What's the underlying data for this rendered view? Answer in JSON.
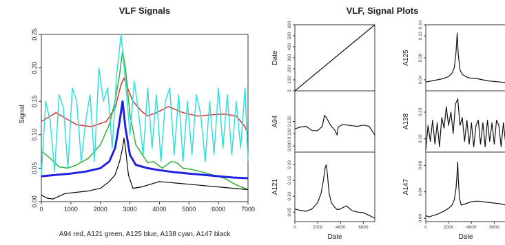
{
  "left_panel": {
    "title": "VLF Signals",
    "ylabel": "Signal",
    "xlabel": "A94 red, A121 green, A125 blue, A138 cyan, A147 black"
  },
  "right_panel": {
    "title": "VLF, Signal Plots",
    "xlabel": "Date"
  },
  "colors": {
    "A94": "#e03030",
    "A121": "#30b030",
    "A125": "#2020e0",
    "A138": "#30e0e0",
    "A147": "#000000"
  },
  "chart_data": [
    {
      "type": "line",
      "title": "VLF Signals",
      "xlabel": "A94 red, A121 green, A125 blue, A138 cyan, A147 black",
      "ylabel": "Signal",
      "xlim": [
        0,
        7000
      ],
      "ylim": [
        0,
        0.25
      ],
      "xticks": [
        0,
        1000,
        2000,
        3000,
        4000,
        5000,
        6000,
        7000
      ],
      "yticks": [
        0.0,
        0.05,
        0.1,
        0.15,
        0.2,
        0.25
      ],
      "ytick_labels": [
        "0.00",
        "0.05",
        "0.10",
        "0.15",
        "0.20",
        "0.25"
      ],
      "series": [
        {
          "name": "A94",
          "color": "#e03030",
          "x": [
            0,
            200,
            500,
            800,
            1200,
            1700,
            2200,
            2500,
            2700,
            2800,
            2900,
            3100,
            3400,
            3600,
            3900,
            4300,
            4800,
            5300,
            5800,
            6200,
            6600,
            6900,
            7000
          ],
          "y": [
            0.12,
            0.125,
            0.133,
            0.125,
            0.115,
            0.112,
            0.12,
            0.14,
            0.175,
            0.185,
            0.172,
            0.15,
            0.135,
            0.128,
            0.133,
            0.142,
            0.133,
            0.128,
            0.13,
            0.131,
            0.128,
            0.112,
            0.1
          ]
        },
        {
          "name": "A121",
          "color": "#30b030",
          "x": [
            0,
            100,
            300,
            600,
            900,
            1200,
            1600,
            2000,
            2300,
            2500,
            2650,
            2750,
            2850,
            3000,
            3200,
            3500,
            3600,
            3800,
            4100,
            4400,
            4600,
            4800,
            5100,
            5400,
            5800,
            6200,
            6600,
            7000
          ],
          "y": [
            0.075,
            0.072,
            0.065,
            0.052,
            0.05,
            0.055,
            0.065,
            0.085,
            0.115,
            0.15,
            0.19,
            0.225,
            0.2,
            0.13,
            0.085,
            0.065,
            0.058,
            0.06,
            0.05,
            0.06,
            0.058,
            0.05,
            0.048,
            0.045,
            0.04,
            0.035,
            0.025,
            0.018
          ]
        },
        {
          "name": "A125",
          "color": "#2020e0",
          "x": [
            0,
            500,
            1000,
            1500,
            2000,
            2300,
            2500,
            2650,
            2750,
            2850,
            3000,
            3200,
            3600,
            4000,
            4500,
            5000,
            5500,
            6000,
            6500,
            7000
          ],
          "y": [
            0.038,
            0.04,
            0.042,
            0.045,
            0.05,
            0.06,
            0.08,
            0.12,
            0.15,
            0.11,
            0.07,
            0.055,
            0.05,
            0.047,
            0.044,
            0.042,
            0.04,
            0.038,
            0.036,
            0.035
          ]
        },
        {
          "name": "A138",
          "color": "#30e0e0",
          "x": [
            0,
            150,
            300,
            450,
            600,
            750,
            900,
            1050,
            1200,
            1350,
            1500,
            1650,
            1800,
            1950,
            2100,
            2250,
            2400,
            2550,
            2700,
            2850,
            3000,
            3150,
            3300,
            3450,
            3600,
            3750,
            3900,
            4050,
            4200,
            4350,
            4500,
            4650,
            4800,
            4950,
            5100,
            5250,
            5400,
            5550,
            5700,
            5850,
            6000,
            6150,
            6300,
            6450,
            6600,
            6750,
            6900,
            7000
          ],
          "y": [
            0.04,
            0.15,
            0.12,
            0.045,
            0.16,
            0.14,
            0.05,
            0.17,
            0.15,
            0.06,
            0.12,
            0.16,
            0.06,
            0.2,
            0.15,
            0.17,
            0.08,
            0.19,
            0.25,
            0.18,
            0.1,
            0.18,
            0.13,
            0.07,
            0.17,
            0.08,
            0.16,
            0.06,
            0.15,
            0.17,
            0.07,
            0.16,
            0.06,
            0.15,
            0.07,
            0.16,
            0.13,
            0.06,
            0.15,
            0.07,
            0.17,
            0.08,
            0.16,
            0.07,
            0.15,
            0.08,
            0.17,
            0.06
          ]
        },
        {
          "name": "A147",
          "color": "#000000",
          "x": [
            0,
            200,
            400,
            600,
            800,
            1200,
            1600,
            2000,
            2300,
            2500,
            2650,
            2750,
            2800,
            2850,
            2950,
            3100,
            3400,
            3700,
            4000,
            4500,
            5000,
            5500,
            6000,
            6500,
            7000
          ],
          "y": [
            0.01,
            0.005,
            0.004,
            0.008,
            0.012,
            0.014,
            0.016,
            0.02,
            0.03,
            0.04,
            0.06,
            0.08,
            0.095,
            0.08,
            0.04,
            0.02,
            0.022,
            0.026,
            0.03,
            0.028,
            0.026,
            0.024,
            0.022,
            0.02,
            0.018
          ]
        }
      ]
    },
    {
      "type": "line",
      "name": "Date",
      "ylabel": "Date",
      "xlabel": "",
      "xlim": [
        0,
        7000
      ],
      "ylim": [
        0,
        600
      ],
      "yticks": [
        0,
        100,
        200,
        300,
        400,
        500,
        600
      ],
      "x": [
        0,
        7000
      ],
      "y": [
        0,
        600
      ]
    },
    {
      "type": "line",
      "name": "A94",
      "ylabel": "A94",
      "xlabel": "",
      "xlim": [
        0,
        7000
      ],
      "ylim": [
        0.08,
        0.18
      ],
      "yticks": [
        0.09,
        0.11,
        0.13
      ],
      "ytick_labels": [
        "0.090",
        "0.110",
        "0.130"
      ],
      "x": [
        0,
        500,
        1000,
        1500,
        2000,
        2400,
        2600,
        2800,
        3000,
        3200,
        3500,
        3700,
        3800,
        4200,
        5000,
        5500,
        6000,
        6500,
        7000
      ],
      "y": [
        0.118,
        0.121,
        0.122,
        0.115,
        0.115,
        0.122,
        0.14,
        0.135,
        0.128,
        0.122,
        0.116,
        0.108,
        0.121,
        0.125,
        0.123,
        0.122,
        0.124,
        0.122,
        0.108
      ]
    },
    {
      "type": "line",
      "name": "A121",
      "ylabel": "A121",
      "xlabel": "Date",
      "xlim": [
        0,
        7000
      ],
      "ylim": [
        0.02,
        0.24
      ],
      "xticks": [
        0,
        2000,
        4000,
        6000
      ],
      "yticks": [
        0.05,
        0.1,
        0.15,
        0.2
      ],
      "ytick_labels": [
        "0.05",
        "0.10",
        "0.15",
        "0.20"
      ],
      "x": [
        0,
        500,
        1000,
        1500,
        2000,
        2300,
        2500,
        2650,
        2750,
        2850,
        3000,
        3200,
        3500,
        3700,
        4000,
        4500,
        5000,
        5500,
        6000,
        6500,
        7000
      ],
      "y": [
        0.06,
        0.055,
        0.053,
        0.06,
        0.08,
        0.11,
        0.15,
        0.19,
        0.2,
        0.17,
        0.11,
        0.08,
        0.065,
        0.058,
        0.06,
        0.07,
        0.055,
        0.05,
        0.048,
        0.04,
        0.03
      ]
    },
    {
      "type": "line",
      "name": "A125",
      "ylabel": "A125",
      "xlabel": "",
      "xlim": [
        0,
        7000
      ],
      "ylim": [
        0.02,
        0.14
      ],
      "yticks": [
        0.04,
        0.08,
        0.12,
        0.14
      ],
      "ytick_labels": [
        "0.04",
        "0.08",
        "0.12",
        "0.14"
      ],
      "x": [
        0,
        500,
        1000,
        1500,
        2000,
        2300,
        2500,
        2650,
        2750,
        2850,
        3000,
        3200,
        3500,
        3700,
        4000,
        4500,
        5000,
        5500,
        6000,
        6500,
        7000
      ],
      "y": [
        0.036,
        0.038,
        0.04,
        0.042,
        0.046,
        0.052,
        0.062,
        0.09,
        0.125,
        0.085,
        0.058,
        0.05,
        0.046,
        0.044,
        0.043,
        0.042,
        0.04,
        0.038,
        0.037,
        0.036,
        0.035
      ]
    },
    {
      "type": "line",
      "name": "A138",
      "ylabel": "A138",
      "xlabel": "",
      "xlim": [
        0,
        7000
      ],
      "ylim": [
        0.05,
        0.28
      ],
      "yticks": [
        0.1,
        0.2
      ],
      "ytick_labels": [
        "0.10",
        "0.20"
      ],
      "x": [
        0,
        200,
        400,
        600,
        800,
        1000,
        1200,
        1400,
        1600,
        1800,
        2000,
        2200,
        2400,
        2600,
        2800,
        3000,
        3200,
        3400,
        3600,
        3800,
        4000,
        4200,
        4400,
        4600,
        4800,
        5000,
        5200,
        5400,
        5600,
        5800,
        6000,
        6200,
        6400,
        6600,
        6800,
        7000
      ],
      "y": [
        0.06,
        0.15,
        0.09,
        0.17,
        0.08,
        0.16,
        0.07,
        0.18,
        0.14,
        0.22,
        0.15,
        0.2,
        0.12,
        0.23,
        0.25,
        0.15,
        0.18,
        0.09,
        0.17,
        0.08,
        0.16,
        0.07,
        0.15,
        0.17,
        0.08,
        0.16,
        0.07,
        0.17,
        0.09,
        0.16,
        0.08,
        0.17,
        0.15,
        0.07,
        0.16,
        0.08
      ]
    },
    {
      "type": "line",
      "name": "A147",
      "ylabel": "A147",
      "xlabel": "Date",
      "xlim": [
        0,
        7000
      ],
      "ylim": [
        -0.005,
        0.1
      ],
      "xticks": [
        0,
        2000,
        4000,
        6000
      ],
      "yticks": [
        0.0,
        0.04,
        0.08
      ],
      "ytick_labels": [
        "0.00",
        "0.04",
        "0.08"
      ],
      "x": [
        0,
        300,
        600,
        1000,
        1500,
        2000,
        2300,
        2500,
        2650,
        2750,
        2800,
        2850,
        2950,
        3100,
        3500,
        4000,
        4500,
        5000,
        5500,
        6000,
        6500,
        7000
      ],
      "y": [
        0.004,
        0.002,
        0.004,
        0.006,
        0.01,
        0.015,
        0.02,
        0.028,
        0.045,
        0.07,
        0.085,
        0.06,
        0.03,
        0.02,
        0.022,
        0.025,
        0.026,
        0.025,
        0.024,
        0.023,
        0.022,
        0.02
      ]
    }
  ]
}
